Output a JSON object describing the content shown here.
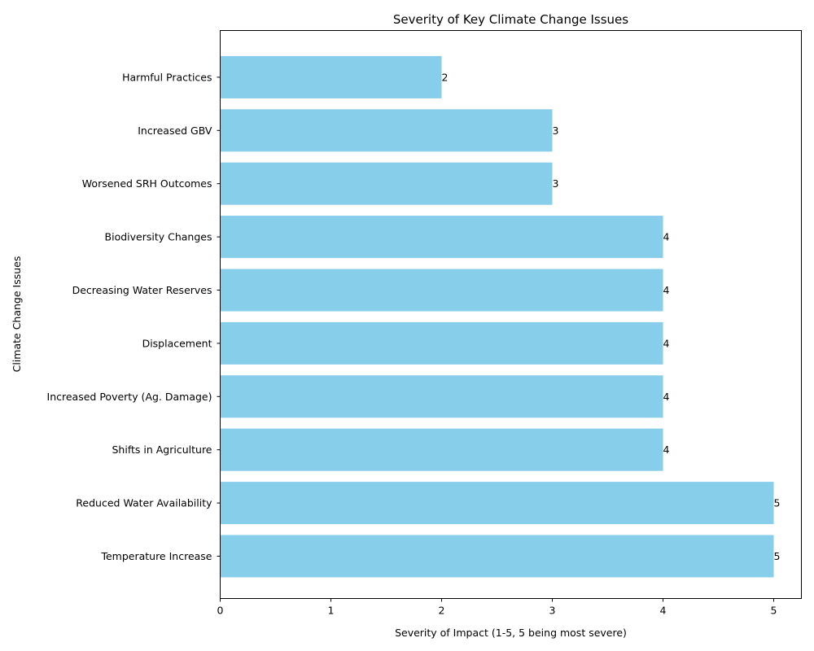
{
  "chart_data": {
    "type": "bar",
    "orientation": "horizontal",
    "title": "Severity of Key Climate Change Issues",
    "xlabel": "Severity of Impact (1-5, 5 being most severe)",
    "ylabel": "Climate Change Issues",
    "xlim": [
      0,
      5.25
    ],
    "xticks": [
      0,
      1,
      2,
      3,
      4,
      5
    ],
    "categories": [
      "Temperature Increase",
      "Reduced Water Availability",
      "Shifts in Agriculture",
      "Increased Poverty (Ag. Damage)",
      "Displacement",
      "Decreasing Water Reserves",
      "Biodiversity Changes",
      "Worsened SRH Outcomes",
      "Increased GBV",
      "Harmful Practices"
    ],
    "values": [
      5,
      5,
      4,
      4,
      4,
      4,
      4,
      3,
      3,
      2
    ],
    "bar_color": "#87ceeb",
    "data_labels": true,
    "grid": false
  }
}
